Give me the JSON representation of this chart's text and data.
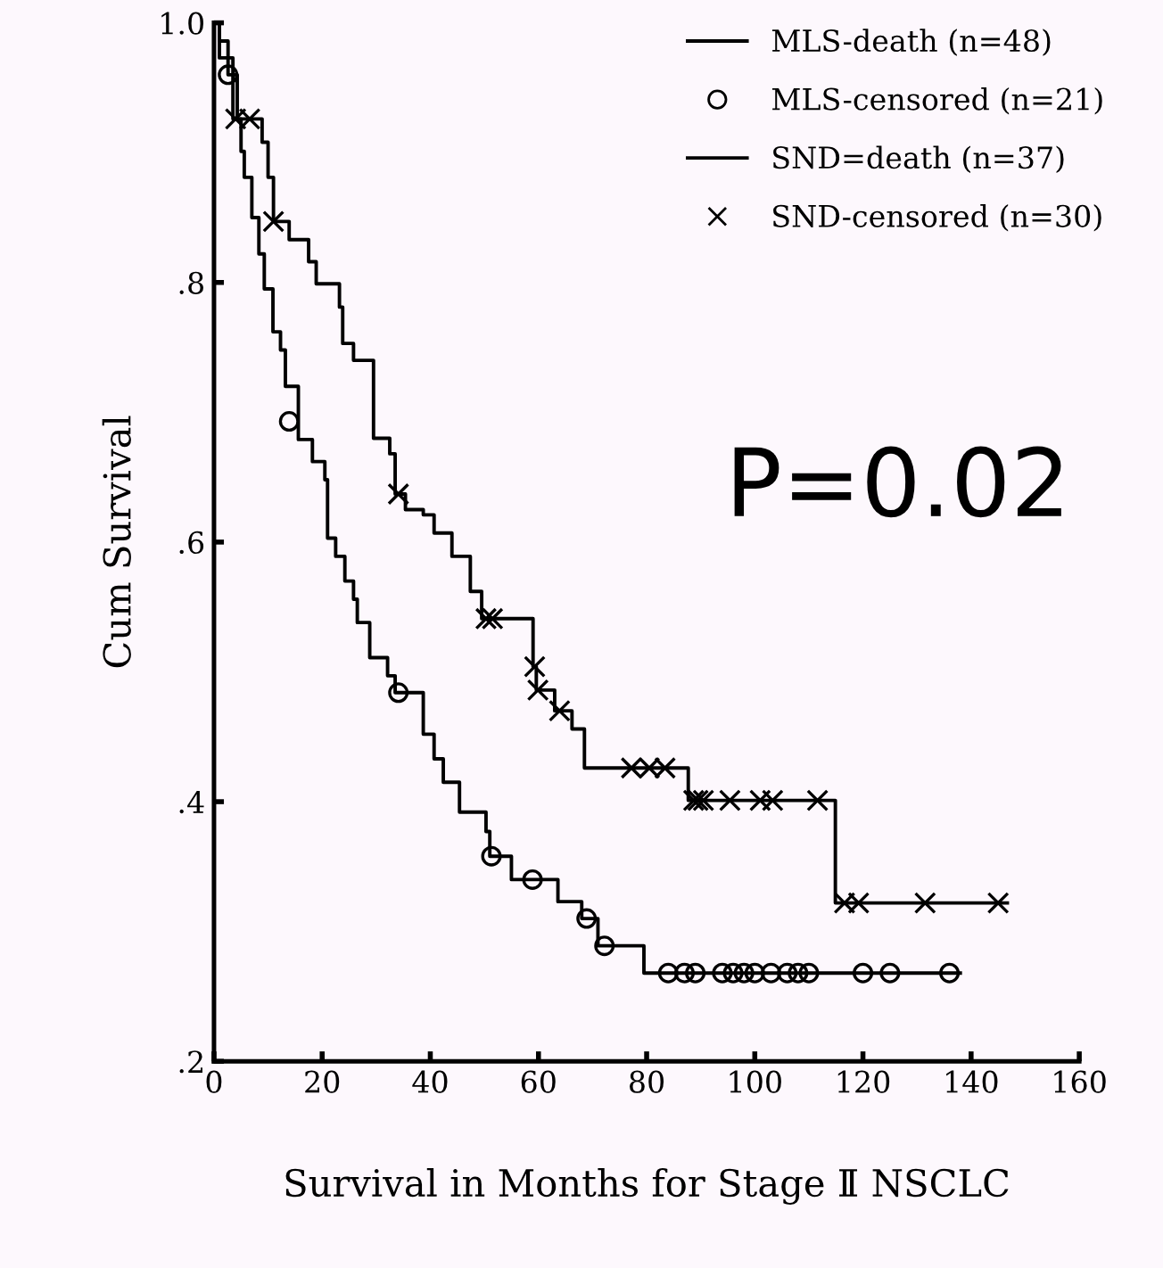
{
  "chart_data": {
    "type": "step",
    "xlabel": "Survival in Months for Stage Ⅱ NSCLC",
    "ylabel": "Cum Survival",
    "xlim": [
      0,
      160
    ],
    "xticks": [
      0,
      20,
      40,
      60,
      80,
      100,
      120,
      140,
      160
    ],
    "ylim": [
      0.2,
      1.0
    ],
    "yticks": [
      {
        "value": 0.2,
        "label": ".2"
      },
      {
        "value": 0.4,
        "label": ".4"
      },
      {
        "value": 0.6,
        "label": ".6"
      },
      {
        "value": 0.8,
        "label": ".8"
      },
      {
        "value": 1.0,
        "label": "1.0"
      }
    ],
    "grid": false,
    "legend": "top right",
    "annotations": [
      "P=0.02"
    ],
    "series": [
      {
        "name": "MLS-death (n=48)",
        "color": "#000000",
        "marker": "none",
        "x": [
          0,
          1.0,
          2.6,
          4.3,
          5.0,
          5.6,
          7.0,
          8.3,
          9.3,
          10.9,
          12.3,
          13.2,
          15.6,
          18.2,
          20.5,
          21.0,
          22.5,
          24.2,
          25.8,
          26.5,
          28.8,
          32.1,
          33.5,
          38.7,
          40.7,
          42.4,
          45.4,
          50.3,
          51.0,
          55.0,
          63.6,
          68.0,
          71.0,
          79.5,
          138
        ],
        "values": [
          1.0,
          0.973,
          0.96,
          0.926,
          0.901,
          0.881,
          0.85,
          0.822,
          0.795,
          0.762,
          0.748,
          0.72,
          0.679,
          0.662,
          0.648,
          0.603,
          0.589,
          0.57,
          0.556,
          0.538,
          0.511,
          0.497,
          0.484,
          0.452,
          0.433,
          0.415,
          0.392,
          0.377,
          0.358,
          0.34,
          0.323,
          0.31,
          0.289,
          0.268,
          0.268
        ]
      },
      {
        "name": "MLS-censored (n=21)",
        "type": "scatter",
        "color": "#000000",
        "marker": "circle",
        "x": [
          2.6,
          13.9,
          34.1,
          51.3,
          58.9,
          68.9,
          72.2,
          84,
          87,
          89,
          94,
          96,
          98,
          100,
          103,
          106,
          108,
          110,
          120,
          125,
          136
        ],
        "values": [
          0.96,
          0.693,
          0.484,
          0.358,
          0.34,
          0.31,
          0.289,
          0.268,
          0.268,
          0.268,
          0.268,
          0.268,
          0.268,
          0.268,
          0.268,
          0.268,
          0.268,
          0.268,
          0.268,
          0.268,
          0.268
        ]
      },
      {
        "name": "SND=death (n=37)",
        "color": "#000000",
        "marker": "none",
        "x": [
          0,
          1.0,
          2.6,
          3.5,
          8.9,
          10.0,
          11.0,
          13.9,
          17.5,
          18.9,
          23.2,
          23.8,
          25.8,
          29.5,
          32.5,
          33.5,
          35.4,
          38.7,
          40.7,
          44.0,
          47.4,
          49.5,
          59.0,
          59.6,
          63.0,
          66.2,
          68.5,
          87.7,
          114.9,
          146.7
        ],
        "values": [
          1.0,
          0.986,
          0.973,
          0.926,
          0.908,
          0.881,
          0.847,
          0.833,
          0.816,
          0.799,
          0.781,
          0.753,
          0.74,
          0.68,
          0.668,
          0.637,
          0.625,
          0.621,
          0.607,
          0.589,
          0.562,
          0.541,
          0.504,
          0.486,
          0.47,
          0.456,
          0.426,
          0.401,
          0.322,
          0.322
        ]
      },
      {
        "name": "SND-censored (n=30)",
        "type": "scatter",
        "color": "#000000",
        "marker": "cross",
        "x": [
          4.0,
          6.6,
          11.0,
          34.1,
          50.3,
          51.5,
          59.3,
          59.9,
          63.9,
          77.2,
          80.5,
          83.4,
          88.7,
          89.5,
          90.5,
          95.4,
          101,
          103.3,
          111.6,
          116.6,
          119.2,
          131.5,
          145
        ],
        "values": [
          0.926,
          0.926,
          0.847,
          0.637,
          0.541,
          0.541,
          0.504,
          0.486,
          0.47,
          0.426,
          0.426,
          0.426,
          0.401,
          0.401,
          0.401,
          0.401,
          0.401,
          0.401,
          0.401,
          0.322,
          0.322,
          0.322,
          0.322
        ]
      }
    ]
  }
}
